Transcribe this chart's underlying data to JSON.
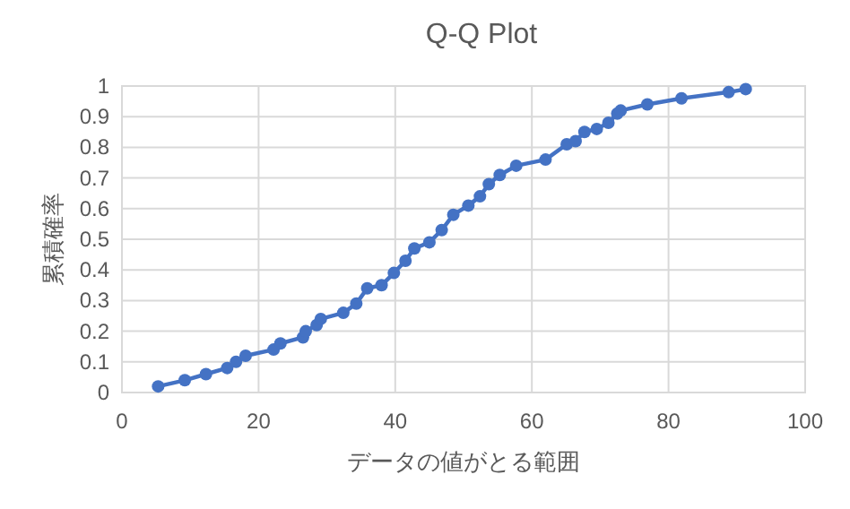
{
  "chart_data": {
    "type": "line",
    "title": "Q-Q Plot",
    "xlabel": "データの値がとる範囲",
    "ylabel": "累積確率",
    "x": [
      5.3,
      9.2,
      12.3,
      15.4,
      16.7,
      18.1,
      22.2,
      23.2,
      26.5,
      26.9,
      28.5,
      29.1,
      32.4,
      34.3,
      35.9,
      38,
      39.8,
      41.5,
      42.8,
      45,
      46.8,
      48.5,
      50.7,
      52.4,
      53.7,
      55.3,
      57.7,
      62,
      65.1,
      66.4,
      67.7,
      69.5,
      71.2,
      72.5,
      73,
      76.9,
      81.9,
      88.8,
      91.3
    ],
    "series": [
      {
        "color": "#4472c4",
        "values": [
          0.02,
          0.04,
          0.06,
          0.08,
          0.1,
          0.12,
          0.14,
          0.16,
          0.18,
          0.2,
          0.22,
          0.24,
          0.26,
          0.29,
          0.34,
          0.35,
          0.39,
          0.43,
          0.47,
          0.49,
          0.53,
          0.58,
          0.61,
          0.64,
          0.68,
          0.71,
          0.74,
          0.76,
          0.81,
          0.82,
          0.85,
          0.86,
          0.88,
          0.91,
          0.92,
          0.94,
          0.96,
          0.98,
          0.99
        ]
      }
    ],
    "xlim": [
      0,
      100
    ],
    "xticks": [
      0,
      20,
      40,
      60,
      80,
      100
    ],
    "ylim": [
      0,
      1
    ],
    "yticks": [
      0,
      0.1,
      0.2,
      0.3,
      0.4,
      0.5,
      0.6,
      0.7,
      0.8,
      0.9,
      1
    ],
    "grid": true,
    "marker": "circle",
    "line_style": "solid"
  }
}
